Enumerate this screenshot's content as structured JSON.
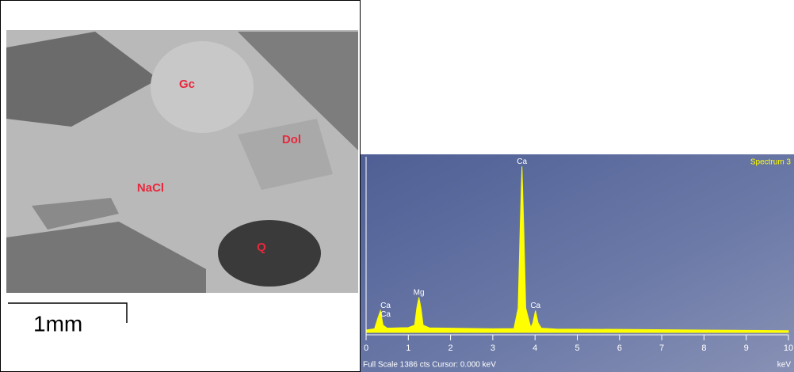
{
  "micrograph": {
    "labels": [
      "Gc",
      "Dol",
      "NaCl",
      "Q"
    ],
    "scale_bar": "1mm"
  },
  "chart_data": {
    "type": "area",
    "title": "Spectrum 3",
    "xlabel": "keV",
    "footer": "Full Scale 1386 cts  Cursor: 0.000 keV",
    "color": "#ffff00",
    "x": [
      0,
      0.2,
      0.28,
      0.34,
      0.4,
      0.5,
      1.0,
      1.15,
      1.2,
      1.25,
      1.3,
      1.35,
      1.5,
      2,
      3,
      3.5,
      3.6,
      3.65,
      3.69,
      3.73,
      3.78,
      3.9,
      3.95,
      4.01,
      4.07,
      4.15,
      4.5,
      6,
      8,
      10
    ],
    "values": [
      20,
      30,
      120,
      180,
      60,
      35,
      40,
      60,
      200,
      290,
      200,
      60,
      38,
      35,
      30,
      32,
      200,
      900,
      1370,
      900,
      200,
      40,
      80,
      180,
      80,
      35,
      28,
      25,
      20,
      15
    ],
    "peaks": [
      {
        "label": "Ca",
        "x": 0.34,
        "y": 180
      },
      {
        "label": "Ca",
        "x": 0.34,
        "y": 110
      },
      {
        "label": "Mg",
        "x": 1.25,
        "y": 290
      },
      {
        "label": "Ca",
        "x": 3.69,
        "y": 1370
      },
      {
        "label": "Ca",
        "x": 4.01,
        "y": 180
      }
    ],
    "xlim": [
      0,
      10
    ],
    "xticks": [
      0,
      1,
      2,
      3,
      4,
      5,
      6,
      7,
      8,
      9,
      10
    ],
    "ylim": [
      0,
      1386
    ]
  }
}
